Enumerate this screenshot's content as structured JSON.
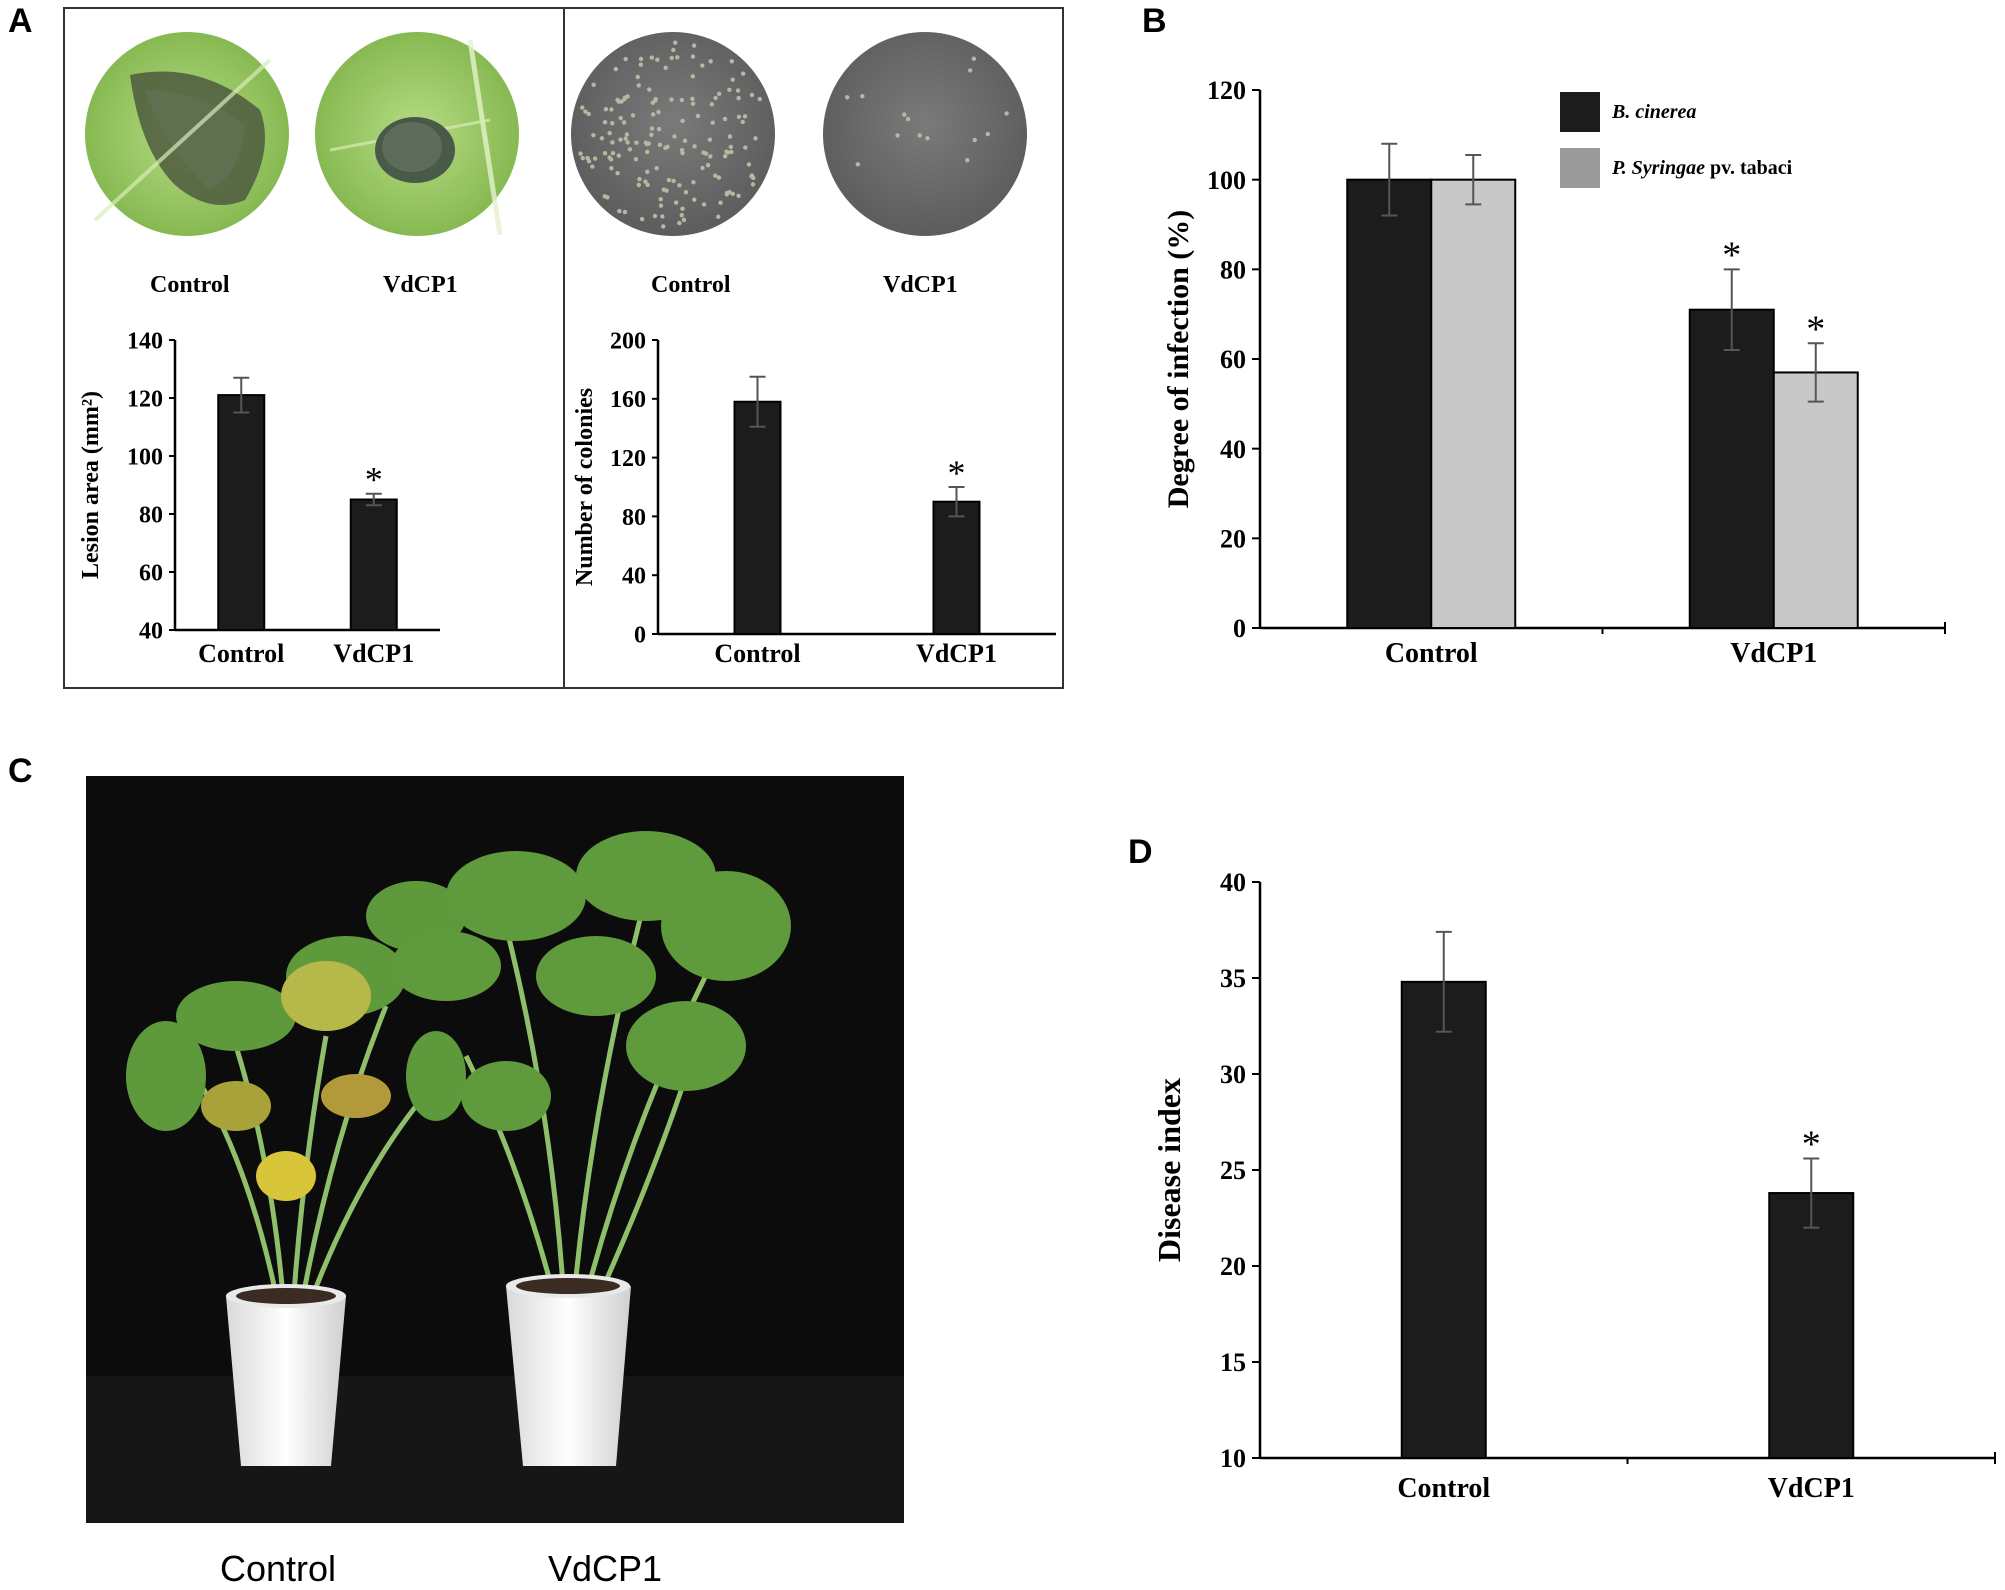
{
  "panels": {
    "A": {
      "letter": "A",
      "photos_left_labels": [
        "Control",
        "VdCP1"
      ],
      "photos_right_labels": [
        "Control",
        "VdCP1"
      ]
    },
    "B": {
      "letter": "B"
    },
    "C": {
      "letter": "C",
      "labels": [
        "Control",
        "VdCP1"
      ]
    },
    "D": {
      "letter": "D"
    }
  },
  "colors": {
    "bar_dark": "#1c1c1c",
    "bar_light": "#c8c8c8",
    "leaf_green": "#8ec25a",
    "plate_gray": "#6e6e6e",
    "photo_bg": "#0c0c0c"
  },
  "chart_data": [
    {
      "id": "A-left",
      "type": "bar",
      "categories": [
        "Control",
        "VdCP1"
      ],
      "values": [
        121,
        85
      ],
      "errors": [
        6,
        2
      ],
      "significance": [
        "",
        "*"
      ],
      "ylabel": "Lesion area (mm²)",
      "ylim": [
        40,
        140
      ],
      "yticks": [
        40,
        60,
        80,
        100,
        120,
        140
      ]
    },
    {
      "id": "A-right",
      "type": "bar",
      "categories": [
        "Control",
        "VdCP1"
      ],
      "values": [
        158,
        90
      ],
      "errors": [
        17,
        10
      ],
      "significance": [
        "",
        "*"
      ],
      "ylabel": "Number of colonies",
      "ylim": [
        0,
        200
      ],
      "yticks": [
        0,
        40,
        80,
        120,
        160,
        200
      ]
    },
    {
      "id": "B",
      "type": "bar",
      "categories": [
        "Control",
        "VdCP1"
      ],
      "series": [
        {
          "name": "B. cinerea",
          "name_italic": "B. cinerea",
          "name_rest": "",
          "values": [
            100,
            71
          ],
          "errors": [
            8,
            9
          ],
          "significance": [
            "",
            "*"
          ]
        },
        {
          "name": "P. Syringae pv. tabaci",
          "name_italic": "P. Syringae",
          "name_rest": " pv. tabaci",
          "values": [
            100,
            57
          ],
          "errors": [
            5.5,
            6.5
          ],
          "significance": [
            "",
            "*"
          ]
        }
      ],
      "ylabel": "Degree of infection (%)",
      "ylim": [
        0,
        120
      ],
      "yticks": [
        0,
        20,
        40,
        60,
        80,
        100,
        120
      ],
      "legend_position": "top-right"
    },
    {
      "id": "D",
      "type": "bar",
      "categories": [
        "Control",
        "VdCP1"
      ],
      "values": [
        34.8,
        23.8
      ],
      "errors": [
        2.6,
        1.8
      ],
      "significance": [
        "",
        "*"
      ],
      "ylabel": "Disease index",
      "ylim": [
        10,
        40
      ],
      "yticks": [
        10,
        15,
        20,
        25,
        30,
        35,
        40
      ]
    }
  ]
}
